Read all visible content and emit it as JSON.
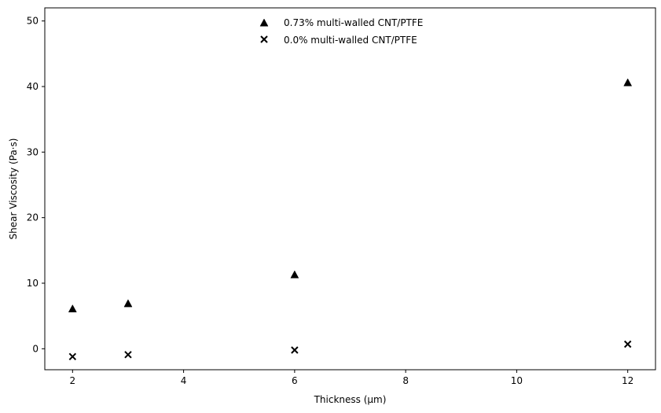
{
  "chart_data": {
    "type": "scatter",
    "title": "",
    "xlabel": "Thickness (μm)",
    "ylabel": "Shear Viscosity (Pa·s)",
    "xlim": [
      1.5,
      12.5
    ],
    "ylim": [
      -3.2,
      52
    ],
    "x_ticks": [
      2,
      4,
      6,
      8,
      10,
      12
    ],
    "y_ticks": [
      0,
      10,
      20,
      30,
      40,
      50
    ],
    "grid": false,
    "legend_position": "top-center",
    "series": [
      {
        "name": "0.73% multi-walled CNT/PTFE",
        "marker": "triangle",
        "color": "#000000",
        "x": [
          2,
          3,
          6,
          12
        ],
        "y": [
          6.1,
          6.9,
          11.3,
          40.6
        ]
      },
      {
        "name": "0.0% multi-walled CNT/PTFE",
        "marker": "x",
        "color": "#000000",
        "x": [
          2,
          3,
          6,
          12
        ],
        "y": [
          -1.2,
          -0.9,
          -0.2,
          0.7
        ]
      }
    ]
  }
}
